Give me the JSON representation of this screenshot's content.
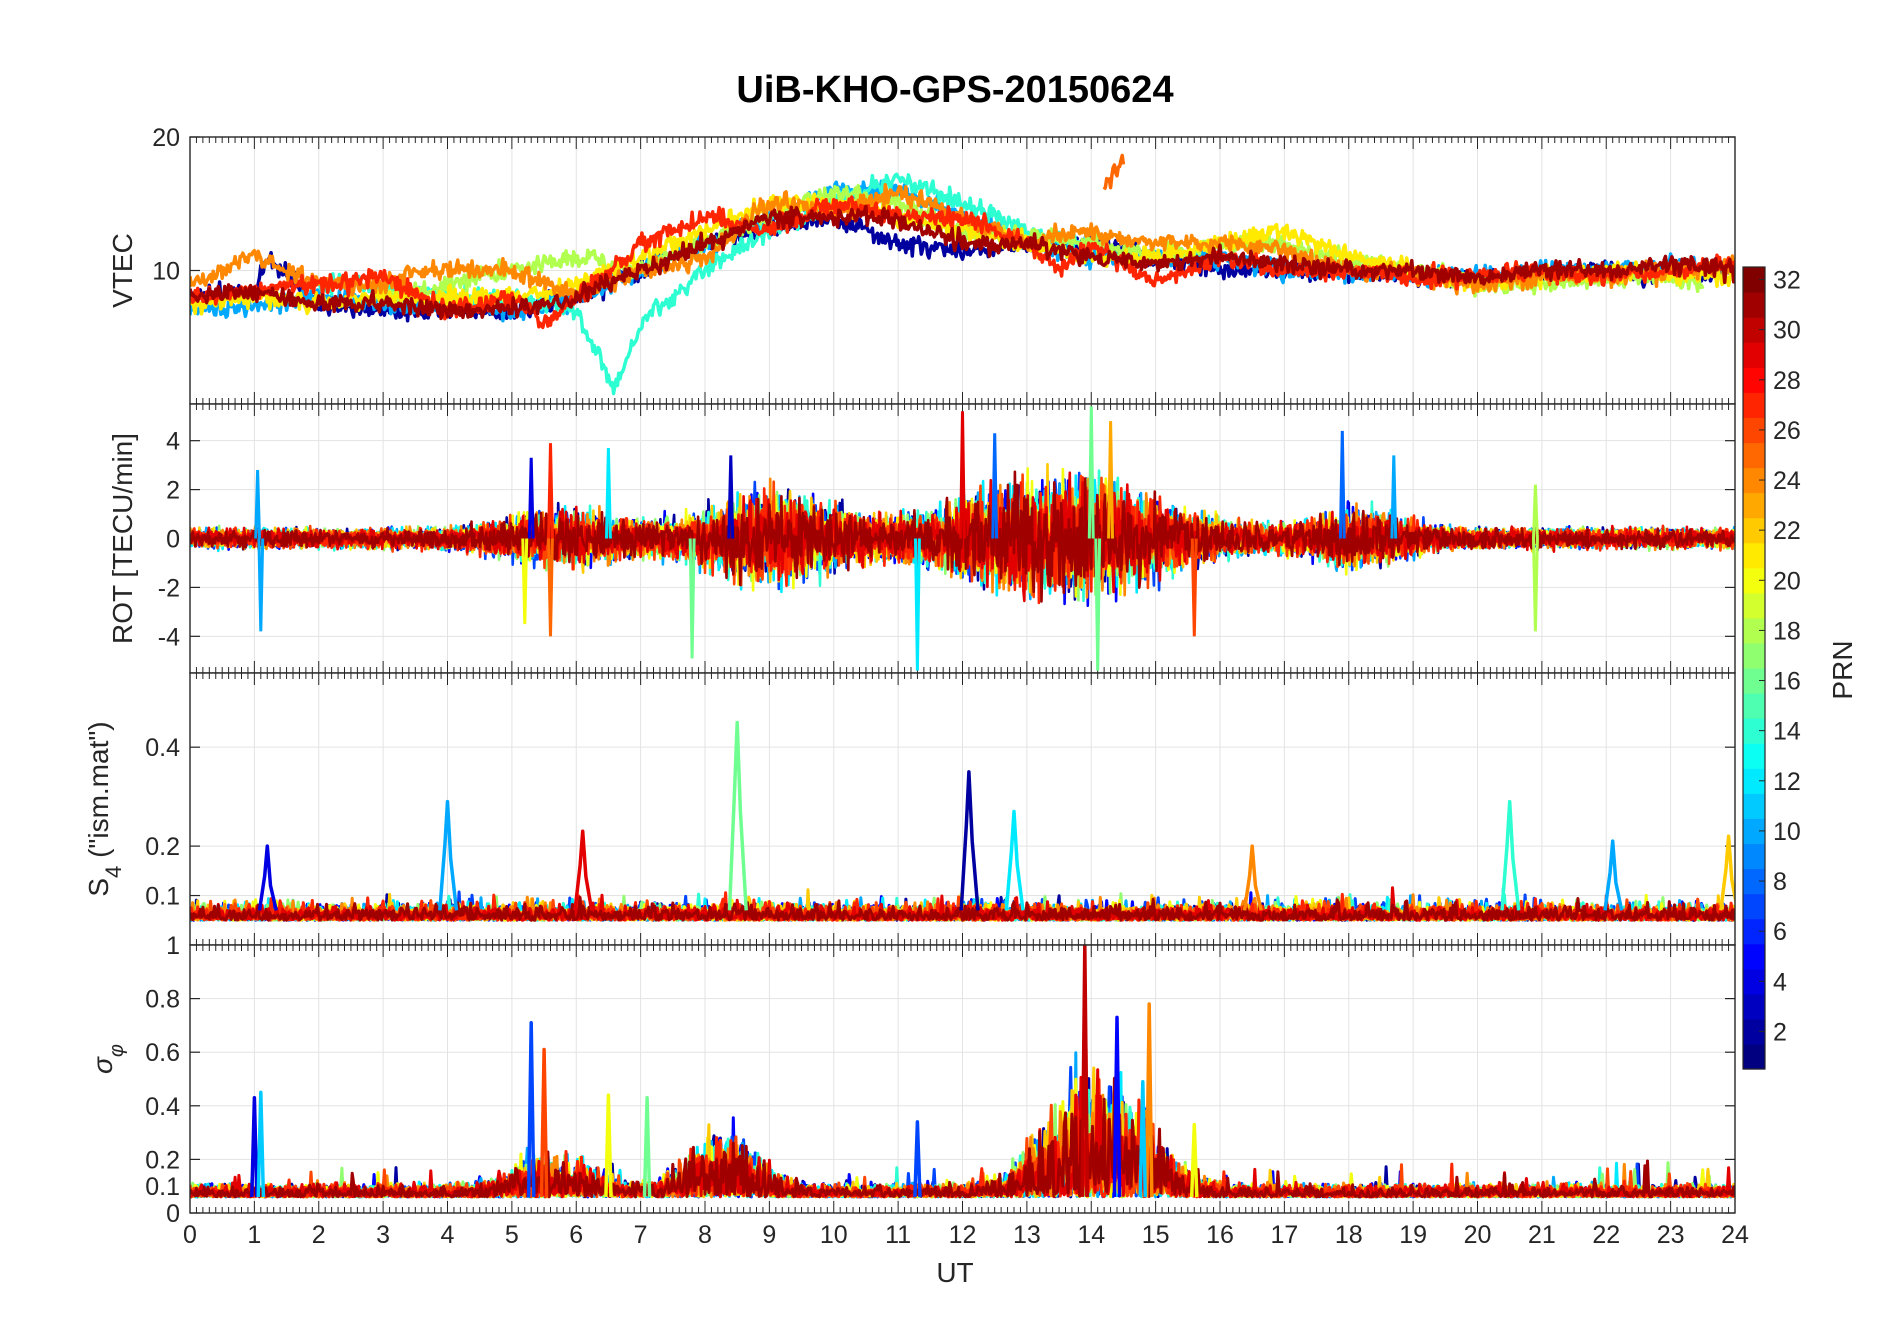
{
  "chart_data": {
    "type": "line",
    "title": "UiB-KHO-GPS-20150624",
    "xlabel": "UT",
    "xlim": [
      0,
      24
    ],
    "x_ticks": [
      "0",
      "1",
      "2",
      "3",
      "4",
      "5",
      "6",
      "7",
      "8",
      "9",
      "10",
      "11",
      "12",
      "13",
      "14",
      "15",
      "16",
      "17",
      "18",
      "19",
      "20",
      "21",
      "22",
      "23",
      "24"
    ],
    "grid": true,
    "colorbar": {
      "label": "PRN",
      "colormap": "jet",
      "range": [
        1,
        32
      ],
      "ticks": [
        "2",
        "4",
        "6",
        "8",
        "10",
        "12",
        "14",
        "16",
        "18",
        "20",
        "22",
        "24",
        "26",
        "28",
        "30",
        "32"
      ]
    },
    "panels": [
      {
        "id": "vtec",
        "ylabel": "VTEC",
        "ylim": [
          0,
          20
        ],
        "y_ticks": [
          "0",
          "10",
          "20"
        ],
        "hidden_tick_labels": [
          "0"
        ],
        "series": [
          {
            "prn": 2,
            "x": [
              0,
              1,
              1.2,
              2,
              3,
              4,
              5,
              6,
              7,
              8,
              9,
              10,
              11,
              12,
              13,
              14,
              15,
              16,
              17,
              18,
              19,
              20,
              21,
              22,
              23,
              24
            ],
            "y": [
              8,
              8.5,
              11,
              7.5,
              7,
              7,
              7,
              8,
              10,
              12,
              13,
              14,
              12,
              11.5,
              12,
              12,
              11,
              10,
              10,
              10,
              9.5,
              9.5,
              9.5,
              10,
              9.5,
              10
            ]
          },
          {
            "prn": 10,
            "x": [
              0,
              1,
              2,
              3,
              4,
              5,
              6,
              7,
              8,
              9,
              10,
              11,
              12,
              13,
              14,
              15,
              16,
              17,
              18,
              19,
              20,
              21,
              22,
              23,
              24
            ],
            "y": [
              7,
              7.5,
              8,
              7.5,
              7.5,
              7,
              8,
              10,
              12,
              14,
              16,
              16,
              14,
              12,
              11,
              11,
              11,
              10,
              10,
              9.5,
              9.5,
              10,
              10,
              10.5,
              10
            ]
          },
          {
            "prn": 14,
            "x": [
              2,
              3,
              4,
              5,
              6,
              6.6,
              7,
              8,
              9,
              10,
              11,
              12,
              13,
              14
            ],
            "y": [
              9,
              8.5,
              8,
              8,
              7,
              1,
              6,
              10,
              13,
              15,
              17,
              15,
              13,
              12
            ]
          },
          {
            "prn": 18,
            "x": [
              3,
              4,
              6,
              7,
              8,
              9,
              10,
              11,
              12,
              14,
              15,
              16,
              17,
              18,
              19,
              20,
              21,
              22,
              23,
              23.5
            ],
            "y": [
              8,
              9,
              11,
              10,
              12,
              14,
              16,
              15,
              13,
              12,
              11,
              12,
              12,
              11,
              10,
              9,
              9,
              9.5,
              9.5,
              9
            ]
          },
          {
            "prn": 21,
            "x": [
              0,
              1,
              2,
              3,
              5,
              6,
              7,
              8,
              9,
              10,
              11,
              12,
              13,
              14,
              15,
              16,
              17,
              18,
              19,
              20,
              21,
              22,
              23,
              24
            ],
            "y": [
              7.5,
              8,
              7.5,
              8,
              8,
              9,
              11,
              13,
              15,
              15,
              14,
              13,
              12,
              11,
              11,
              12,
              13,
              11,
              10,
              9,
              9.5,
              10,
              9.5,
              9.5
            ]
          },
          {
            "prn": 24,
            "x": [
              0,
              0.5,
              1,
              2,
              3,
              3.5,
              5,
              6,
              7,
              8,
              9,
              9.5,
              10,
              11,
              12,
              13,
              14,
              15,
              16,
              17,
              18,
              19,
              20,
              21,
              22,
              23,
              24
            ],
            "y": [
              9,
              10,
              11,
              9,
              9,
              10,
              10,
              8,
              10,
              11,
              15,
              15,
              14,
              16,
              14,
              12,
              13,
              12,
              12,
              11.5,
              10,
              9.5,
              9,
              9.5,
              9.5,
              10,
              10.5
            ]
          },
          {
            "prn": 25,
            "x": [
              14.2,
              14.3,
              14.5
            ],
            "y": [
              16,
              17,
              18
            ]
          },
          {
            "prn": 27,
            "x": [
              0,
              1,
              2,
              3,
              4,
              5,
              5.5,
              6,
              7,
              8,
              9,
              10,
              11,
              12,
              13,
              13.5,
              14,
              15,
              16,
              17,
              18,
              19,
              20,
              21,
              22,
              23,
              24
            ],
            "y": [
              8,
              8.5,
              9,
              9.5,
              7,
              8,
              6,
              8,
              12,
              14,
              13,
              15,
              14,
              14,
              12,
              10,
              12,
              9,
              11,
              10,
              10,
              9.5,
              9.5,
              10,
              9.5,
              10,
              10.5
            ]
          },
          {
            "prn": 31,
            "x": [
              0,
              1,
              2,
              3,
              4,
              5,
              6,
              7,
              8,
              9,
              10,
              10.8,
              12,
              13,
              14,
              15,
              16,
              17,
              18,
              19,
              20,
              21,
              22,
              23,
              24
            ],
            "y": [
              8,
              8.5,
              7.5,
              7.5,
              7,
              7,
              8,
              10,
              12,
              14,
              14,
              14,
              12,
              12,
              11,
              10.5,
              11,
              10.5,
              10,
              10,
              9.5,
              10,
              10,
              10.5,
              10
            ]
          }
        ]
      },
      {
        "id": "rot",
        "ylabel": "ROT [TECU/min]",
        "ylim": [
          -5.5,
          5.5
        ],
        "y_ticks": [
          "-4",
          "-2",
          "0",
          "2",
          "4"
        ],
        "spikes": [
          {
            "prn": 10,
            "x": 1.1,
            "y": -3.8
          },
          {
            "prn": 10,
            "x": 1.05,
            "y": 2.8
          },
          {
            "prn": 4,
            "x": 5.3,
            "y": 3.3
          },
          {
            "prn": 20,
            "x": 5.2,
            "y": -3.5
          },
          {
            "prn": 27,
            "x": 5.6,
            "y": 3.9
          },
          {
            "prn": 25,
            "x": 5.6,
            "y": -4.0
          },
          {
            "prn": 12,
            "x": 6.5,
            "y": 3.7
          },
          {
            "prn": 16,
            "x": 7.8,
            "y": -4.9
          },
          {
            "prn": 3,
            "x": 8.4,
            "y": 3.4
          },
          {
            "prn": 12,
            "x": 11.3,
            "y": -5.4
          },
          {
            "prn": 29,
            "x": 12.0,
            "y": 5.2
          },
          {
            "prn": 8,
            "x": 12.5,
            "y": 4.3
          },
          {
            "prn": 16,
            "x": 14.0,
            "y": 5.4
          },
          {
            "prn": 16,
            "x": 14.1,
            "y": -5.4
          },
          {
            "prn": 23,
            "x": 14.3,
            "y": 4.8
          },
          {
            "prn": 26,
            "x": 15.6,
            "y": -4.0
          },
          {
            "prn": 8,
            "x": 17.9,
            "y": 4.4
          },
          {
            "prn": 10,
            "x": 18.7,
            "y": 3.4
          },
          {
            "prn": 18,
            "x": 20.9,
            "y": -3.8
          },
          {
            "prn": 18,
            "x": 20.9,
            "y": 2.2
          }
        ]
      },
      {
        "id": "s4",
        "ylabel": "S4 (\"ism.mat\")",
        "ylim": [
          0,
          0.55
        ],
        "y_ticks": [
          "0.1",
          "0.2",
          "0.4"
        ],
        "peaks": [
          {
            "prn": 4,
            "x": 1.2,
            "y": 0.2
          },
          {
            "prn": 10,
            "x": 4.0,
            "y": 0.29
          },
          {
            "prn": 29,
            "x": 6.1,
            "y": 0.23
          },
          {
            "prn": 16,
            "x": 8.5,
            "y": 0.45
          },
          {
            "prn": 2,
            "x": 12.1,
            "y": 0.35
          },
          {
            "prn": 12,
            "x": 12.8,
            "y": 0.27
          },
          {
            "prn": 24,
            "x": 16.5,
            "y": 0.2
          },
          {
            "prn": 14,
            "x": 20.5,
            "y": 0.29
          },
          {
            "prn": 10,
            "x": 22.1,
            "y": 0.21
          },
          {
            "prn": 22,
            "x": 23.9,
            "y": 0.22
          }
        ]
      },
      {
        "id": "sigma_phi",
        "ylabel": "σφ",
        "ylim": [
          0,
          1
        ],
        "y_ticks": [
          "0",
          "0.1",
          "0.2",
          "0.4",
          "0.6",
          "0.8",
          "1"
        ],
        "peaks": [
          {
            "prn": 4,
            "x": 1.0,
            "y": 0.43
          },
          {
            "prn": 11,
            "x": 1.1,
            "y": 0.45
          },
          {
            "prn": 7,
            "x": 5.3,
            "y": 0.71
          },
          {
            "prn": 26,
            "x": 5.5,
            "y": 0.61
          },
          {
            "prn": 20,
            "x": 6.5,
            "y": 0.44
          },
          {
            "prn": 16,
            "x": 7.1,
            "y": 0.43
          },
          {
            "prn": 7,
            "x": 11.3,
            "y": 0.34
          },
          {
            "prn": 30,
            "x": 13.9,
            "y": 1.0
          },
          {
            "prn": 5,
            "x": 14.4,
            "y": 0.73
          },
          {
            "prn": 24,
            "x": 14.9,
            "y": 0.78
          },
          {
            "prn": 11,
            "x": 14.8,
            "y": 0.49
          },
          {
            "prn": 20,
            "x": 15.6,
            "y": 0.33
          }
        ]
      }
    ]
  }
}
